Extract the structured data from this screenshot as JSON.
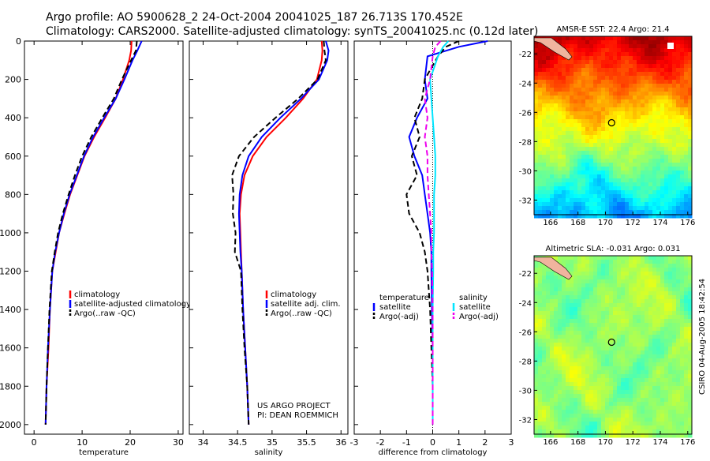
{
  "header": {
    "line1": "Argo profile: AO 5900628_2 24-Oct-2004 20041025_187 26.713S 170.452E",
    "line2": "Climatology: CARS2000. Satellite-adjusted climatology: synTS_20041025.nc (0.12d later)"
  },
  "footer": {
    "project": "US ARGO PROJECT",
    "pi": "PI: DEAN ROEMMICH",
    "stamp": "CSIRO 04-Aug-2005 18:42:54"
  },
  "colors": {
    "climatology": "#ff0000",
    "satellite": "#0000ff",
    "argo": "#000000",
    "sal_satellite": "#00e5ff",
    "sal_argo": "#ee00ee"
  },
  "chart_data": [
    {
      "type": "line",
      "xlabel": "temperature",
      "ylabel": "",
      "xlim": [
        -2,
        31
      ],
      "ylim": [
        2050,
        0
      ],
      "xticks": [
        0,
        10,
        20,
        30
      ],
      "yticks": [
        0,
        200,
        400,
        600,
        800,
        1000,
        1200,
        1400,
        1600,
        1800,
        2000
      ],
      "legend": [
        "climatology",
        "satellite-adjusted climatology",
        "Argo(..raw -QC)"
      ],
      "legend_position": "lower-right",
      "series": [
        {
          "name": "climatology",
          "style": "solid",
          "color": "climatology",
          "x": [
            20.3,
            20.2,
            19.8,
            18.5,
            17.0,
            14.8,
            12.5,
            10.5,
            9.0,
            7.5,
            6.3,
            5.2,
            4.5,
            3.8,
            3.3,
            3.0,
            2.6,
            2.4
          ],
          "y": [
            0,
            50,
            100,
            200,
            300,
            400,
            500,
            600,
            700,
            800,
            900,
            1000,
            1100,
            1200,
            1400,
            1600,
            1800,
            2000
          ]
        },
        {
          "name": "satellite-adjusted climatology",
          "style": "solid",
          "color": "satellite",
          "x": [
            22.4,
            21.5,
            20.5,
            18.8,
            17.0,
            14.6,
            12.3,
            10.4,
            8.9,
            7.4,
            6.2,
            5.2,
            4.4,
            3.8,
            3.3,
            2.9,
            2.6,
            2.4
          ],
          "y": [
            0,
            50,
            100,
            200,
            300,
            400,
            500,
            600,
            700,
            800,
            900,
            1000,
            1100,
            1200,
            1400,
            1600,
            1800,
            2000
          ]
        },
        {
          "name": "Argo(..raw -QC)",
          "style": "dashed",
          "color": "argo",
          "x": [
            21.4,
            21.2,
            20.2,
            18.3,
            16.6,
            14.2,
            11.9,
            10.0,
            8.5,
            7.2,
            6.0,
            5.0,
            4.3,
            3.7,
            3.2,
            2.9,
            2.6,
            2.4
          ],
          "y": [
            0,
            50,
            100,
            200,
            300,
            400,
            500,
            600,
            700,
            800,
            900,
            1000,
            1100,
            1200,
            1400,
            1600,
            1800,
            2000
          ]
        }
      ]
    },
    {
      "type": "line",
      "xlabel": "salinity",
      "ylabel": "",
      "xlim": [
        33.8,
        36.1
      ],
      "ylim": [
        2050,
        0
      ],
      "xticks": [
        34,
        34.5,
        35,
        35.5,
        36
      ],
      "yticks": [],
      "legend": [
        "climatology",
        "satellite adj. clim.",
        "Argo(..raw -QC)"
      ],
      "legend_position": "lower-right",
      "series": [
        {
          "name": "climatology",
          "style": "solid",
          "color": "climatology",
          "x": [
            35.72,
            35.73,
            35.72,
            35.65,
            35.45,
            35.2,
            34.92,
            34.72,
            34.6,
            34.55,
            34.53,
            34.54,
            34.55,
            34.56,
            34.58,
            34.61,
            34.64,
            34.66
          ],
          "y": [
            0,
            50,
            100,
            200,
            300,
            400,
            500,
            600,
            700,
            800,
            900,
            1000,
            1100,
            1200,
            1400,
            1600,
            1800,
            2000
          ]
        },
        {
          "name": "satellite adj. clim.",
          "style": "solid",
          "color": "satellite",
          "x": [
            35.78,
            35.82,
            35.8,
            35.68,
            35.42,
            35.12,
            34.85,
            34.66,
            34.57,
            34.53,
            34.52,
            34.53,
            34.54,
            34.56,
            34.58,
            34.61,
            34.64,
            34.66
          ],
          "y": [
            0,
            50,
            100,
            200,
            300,
            400,
            500,
            600,
            700,
            800,
            900,
            1000,
            1100,
            1200,
            1400,
            1600,
            1800,
            2000
          ]
        },
        {
          "name": "Argo(..raw -QC)",
          "style": "dashed",
          "color": "argo",
          "x": [
            35.75,
            35.76,
            35.78,
            35.66,
            35.38,
            35.05,
            34.74,
            34.52,
            34.42,
            34.44,
            34.43,
            34.47,
            34.46,
            34.55,
            34.57,
            34.6,
            34.64,
            34.66
          ],
          "y": [
            0,
            50,
            100,
            200,
            300,
            400,
            500,
            600,
            700,
            800,
            900,
            1000,
            1100,
            1200,
            1400,
            1600,
            1800,
            2000
          ]
        }
      ]
    },
    {
      "type": "line",
      "xlabel": "difference from climatology",
      "ylabel": "",
      "xlim": [
        -3,
        3
      ],
      "ylim": [
        2050,
        0
      ],
      "xticks": [
        -3,
        -2,
        -1,
        0,
        1,
        2,
        3
      ],
      "yticks": [],
      "legend_left_title": "temperature",
      "legend_right_title": "salinity",
      "legend_left": [
        "satellite",
        "Argo(-adj)"
      ],
      "legend_right": [
        "satellite",
        "Argo(-adj)"
      ],
      "series": [
        {
          "name": "temperature satellite",
          "style": "solid",
          "color": "satellite",
          "x": [
            2.1,
            1.0,
            -0.2,
            -0.3,
            -0.2,
            -0.6,
            -0.9,
            -0.7,
            -0.4,
            -0.3,
            -0.2,
            -0.1,
            -0.05,
            -0.05,
            -0.03,
            0.0,
            0.0,
            0.0
          ],
          "y": [
            0,
            30,
            80,
            200,
            300,
            400,
            500,
            600,
            700,
            800,
            900,
            1000,
            1100,
            1200,
            1400,
            1600,
            1800,
            2000
          ]
        },
        {
          "name": "temperature Argo(-adj)",
          "style": "dashed",
          "color": "argo",
          "x": [
            1.0,
            0.5,
            0.2,
            -0.3,
            -0.4,
            -0.7,
            -0.5,
            -0.8,
            -0.6,
            -1.0,
            -0.9,
            -0.5,
            -0.3,
            -0.2,
            -0.1,
            -0.05,
            0.0,
            0.0
          ],
          "y": [
            0,
            30,
            80,
            200,
            300,
            400,
            500,
            600,
            700,
            800,
            900,
            1000,
            1100,
            1200,
            1400,
            1600,
            1800,
            2000
          ]
        },
        {
          "name": "salinity satellite",
          "style": "solid",
          "color": "sal_satellite",
          "x": [
            0.6,
            0.4,
            0.2,
            -0.1,
            -0.05,
            0.0,
            0.05,
            0.1,
            0.1,
            0.05,
            0.05,
            0.05,
            0.02,
            0.02,
            0.0,
            0.0,
            0.0,
            0.0
          ],
          "y": [
            0,
            30,
            80,
            200,
            300,
            400,
            500,
            600,
            700,
            800,
            900,
            1000,
            1100,
            1200,
            1400,
            1600,
            1800,
            2000
          ]
        },
        {
          "name": "salinity Argo(-adj)",
          "style": "dashed",
          "color": "sal_argo",
          "x": [
            0.3,
            0.1,
            0.0,
            -0.1,
            -0.3,
            -0.2,
            -0.3,
            -0.2,
            -0.2,
            -0.15,
            -0.1,
            -0.05,
            -0.05,
            -0.02,
            0.0,
            0.0,
            0.0,
            0.0
          ],
          "y": [
            0,
            30,
            80,
            200,
            300,
            400,
            500,
            600,
            700,
            800,
            900,
            1000,
            1100,
            1200,
            1400,
            1600,
            1800,
            2000
          ]
        }
      ]
    },
    {
      "type": "heatmap",
      "title": "AMSR-E SST: 22.4 Argo: 21.4",
      "xticks": [
        166,
        168,
        170,
        172,
        174,
        176
      ],
      "yticks": [
        -22,
        -24,
        -26,
        -28,
        -30,
        -32
      ],
      "xlim": [
        164.8,
        176.3
      ],
      "ylim": [
        -33.0,
        -20.8
      ],
      "colormap": "jet",
      "argo_position": [
        170.45,
        -26.71
      ]
    },
    {
      "type": "heatmap",
      "title": "Altimetric SLA: -0.031 Argo: 0.031",
      "xticks": [
        166,
        168,
        170,
        172,
        174,
        176
      ],
      "yticks": [
        -22,
        -24,
        -26,
        -28,
        -30,
        -32
      ],
      "xlim": [
        164.8,
        176.3
      ],
      "ylim": [
        -33.0,
        -20.8
      ],
      "colormap": "jet",
      "argo_position": [
        170.45,
        -26.71
      ]
    }
  ]
}
